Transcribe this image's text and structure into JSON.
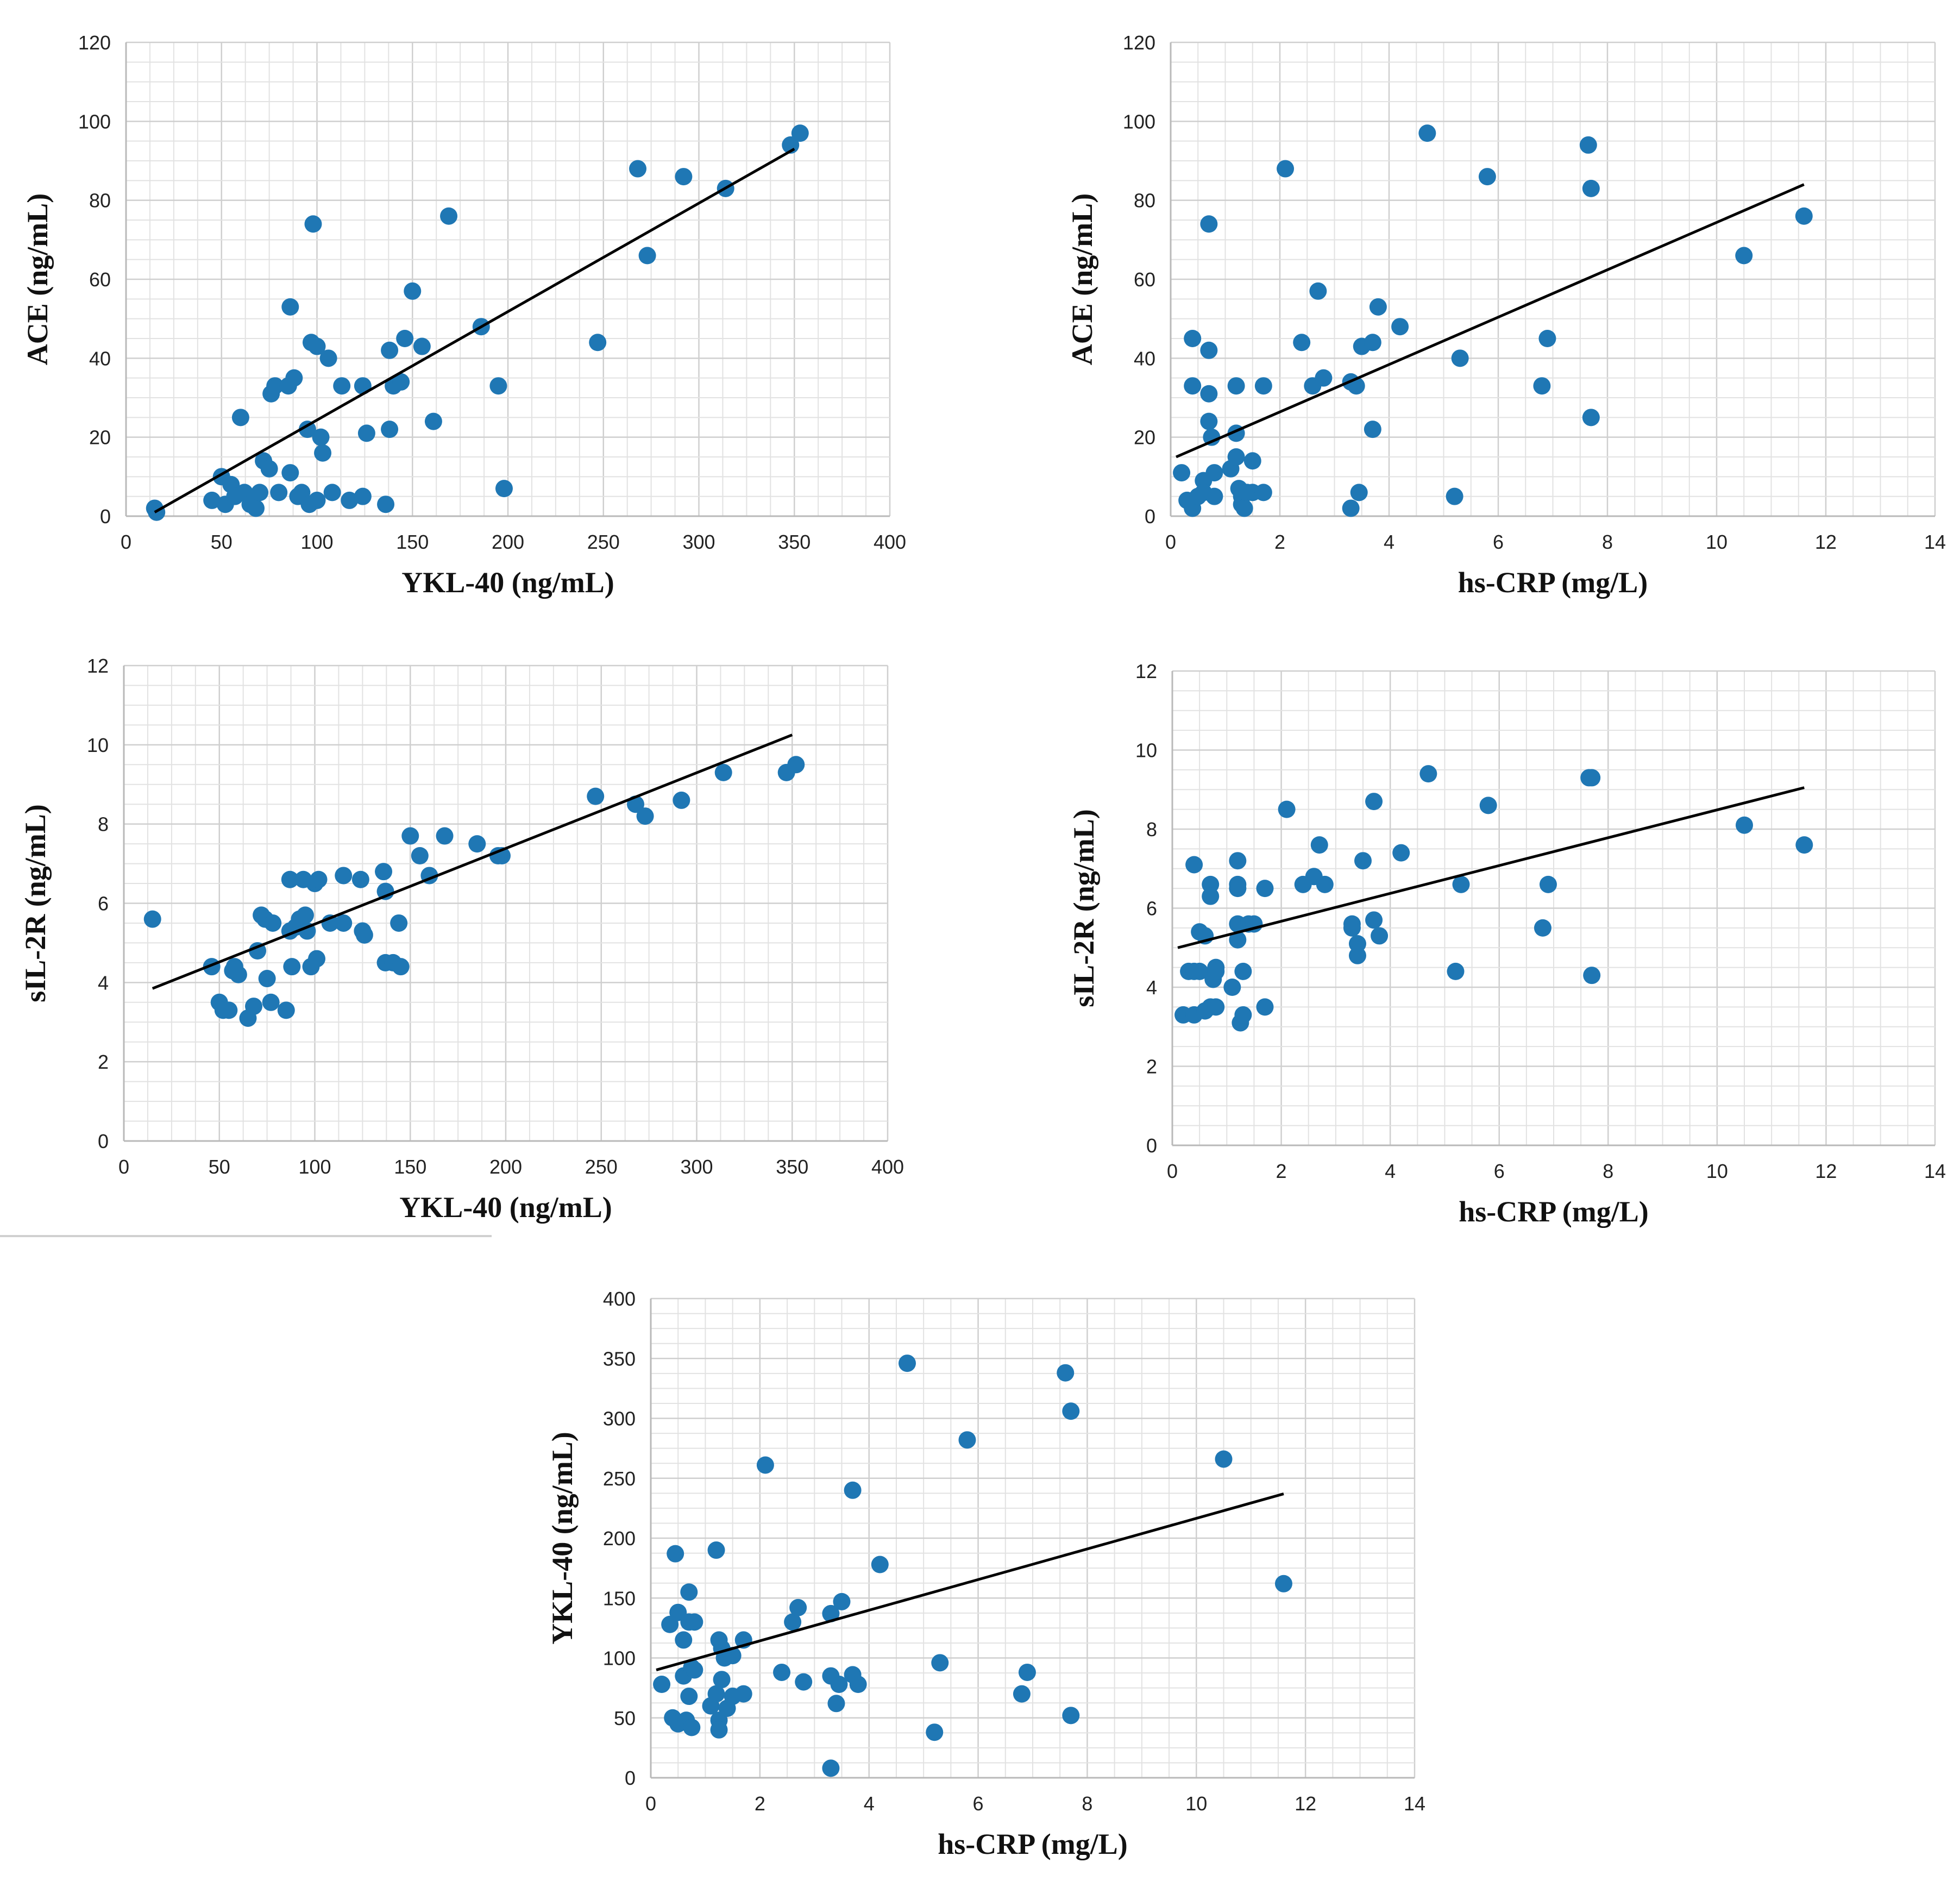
{
  "colors": {
    "point": "#1f77b4",
    "trendline": "#000000"
  },
  "chart_data": [
    {
      "type": "scatter",
      "title": "",
      "xlabel": "YKL-40 (ng/mL)",
      "ylabel": "ACE (ng/mL)",
      "xlim": [
        0,
        400
      ],
      "ylim": [
        0,
        120
      ],
      "xticks": [
        0,
        50,
        100,
        150,
        200,
        250,
        300,
        350,
        400
      ],
      "yticks": [
        0,
        20,
        40,
        60,
        80,
        100,
        120
      ],
      "grid": true,
      "trendline": {
        "x": [
          15,
          350
        ],
        "y": [
          1,
          93
        ]
      },
      "points": [
        [
          15,
          2
        ],
        [
          16,
          1
        ],
        [
          45,
          4
        ],
        [
          50,
          10
        ],
        [
          52,
          3
        ],
        [
          55,
          8
        ],
        [
          57,
          5
        ],
        [
          60,
          25
        ],
        [
          62,
          6
        ],
        [
          65,
          3
        ],
        [
          68,
          2
        ],
        [
          70,
          6
        ],
        [
          72,
          14
        ],
        [
          75,
          12
        ],
        [
          76,
          31
        ],
        [
          78,
          33
        ],
        [
          80,
          6
        ],
        [
          85,
          33
        ],
        [
          86,
          53
        ],
        [
          86,
          11
        ],
        [
          88,
          35
        ],
        [
          90,
          5
        ],
        [
          92,
          6
        ],
        [
          95,
          22
        ],
        [
          96,
          3
        ],
        [
          97,
          44
        ],
        [
          98,
          74
        ],
        [
          100,
          4
        ],
        [
          100,
          43
        ],
        [
          102,
          20
        ],
        [
          103,
          16
        ],
        [
          106,
          40
        ],
        [
          108,
          6
        ],
        [
          113,
          33
        ],
        [
          117,
          4
        ],
        [
          124,
          5
        ],
        [
          124,
          33
        ],
        [
          126,
          21
        ],
        [
          136,
          3
        ],
        [
          138,
          22
        ],
        [
          138,
          42
        ],
        [
          140,
          33
        ],
        [
          144,
          34
        ],
        [
          146,
          45
        ],
        [
          150,
          57
        ],
        [
          155,
          43
        ],
        [
          161,
          24
        ],
        [
          169,
          76
        ],
        [
          186,
          48
        ],
        [
          195,
          33
        ],
        [
          198,
          7
        ],
        [
          247,
          44
        ],
        [
          268,
          88
        ],
        [
          273,
          66
        ],
        [
          292,
          86
        ],
        [
          314,
          83
        ],
        [
          348,
          94
        ],
        [
          353,
          97
        ]
      ]
    },
    {
      "type": "scatter",
      "title": "",
      "xlabel": "hs-CRP (mg/L)",
      "ylabel": "ACE (ng/mL)",
      "xlim": [
        0,
        14
      ],
      "ylim": [
        0,
        120
      ],
      "xticks": [
        0,
        2,
        4,
        6,
        8,
        10,
        12,
        14
      ],
      "yticks": [
        0,
        20,
        40,
        60,
        80,
        100,
        120
      ],
      "grid": true,
      "trendline": {
        "x": [
          0.1,
          11.6
        ],
        "y": [
          15,
          84
        ]
      },
      "points": [
        [
          0.2,
          11
        ],
        [
          0.3,
          4
        ],
        [
          0.4,
          2
        ],
        [
          0.4,
          33
        ],
        [
          0.4,
          45
        ],
        [
          0.5,
          5
        ],
        [
          0.6,
          9
        ],
        [
          0.6,
          6
        ],
        [
          0.7,
          42
        ],
        [
          0.7,
          74
        ],
        [
          0.7,
          24
        ],
        [
          0.7,
          31
        ],
        [
          0.75,
          20
        ],
        [
          0.8,
          11
        ],
        [
          0.8,
          5
        ],
        [
          1.1,
          12
        ],
        [
          1.2,
          33
        ],
        [
          1.2,
          21
        ],
        [
          1.2,
          15
        ],
        [
          1.25,
          7
        ],
        [
          1.3,
          5
        ],
        [
          1.3,
          3
        ],
        [
          1.35,
          2
        ],
        [
          1.4,
          6
        ],
        [
          1.5,
          14
        ],
        [
          1.5,
          6
        ],
        [
          1.7,
          6
        ],
        [
          1.7,
          33
        ],
        [
          2.1,
          88
        ],
        [
          2.4,
          44
        ],
        [
          2.6,
          33
        ],
        [
          2.7,
          57
        ],
        [
          2.8,
          35
        ],
        [
          3.3,
          34
        ],
        [
          3.3,
          2
        ],
        [
          3.4,
          33
        ],
        [
          3.45,
          6
        ],
        [
          3.5,
          43
        ],
        [
          3.7,
          44
        ],
        [
          3.7,
          22
        ],
        [
          3.8,
          53
        ],
        [
          4.2,
          48
        ],
        [
          4.7,
          97
        ],
        [
          5.2,
          5
        ],
        [
          5.3,
          40
        ],
        [
          5.8,
          86
        ],
        [
          6.8,
          33
        ],
        [
          6.9,
          45
        ],
        [
          7.65,
          94
        ],
        [
          7.7,
          83
        ],
        [
          7.7,
          25
        ],
        [
          10.5,
          66
        ],
        [
          11.6,
          76
        ]
      ]
    },
    {
      "type": "scatter",
      "title": "",
      "xlabel": "YKL-40 (ng/mL)",
      "ylabel": "sIL-2R (ng/mL)",
      "xlim": [
        0,
        400
      ],
      "ylim": [
        0,
        12
      ],
      "xticks": [
        0,
        50,
        100,
        150,
        200,
        250,
        300,
        350,
        400
      ],
      "yticks": [
        0,
        2,
        4,
        6,
        8,
        10,
        12
      ],
      "grid": true,
      "trendline": {
        "x": [
          15,
          350
        ],
        "y": [
          3.85,
          10.25
        ]
      },
      "points": [
        [
          15,
          5.6
        ],
        [
          46,
          4.4
        ],
        [
          50,
          3.5
        ],
        [
          52,
          3.3
        ],
        [
          55,
          3.3
        ],
        [
          57,
          4.3
        ],
        [
          58,
          4.4
        ],
        [
          60,
          4.2
        ],
        [
          65,
          3.1
        ],
        [
          68,
          3.4
        ],
        [
          70,
          4.8
        ],
        [
          72,
          5.7
        ],
        [
          74,
          5.6
        ],
        [
          75,
          4.1
        ],
        [
          77,
          3.5
        ],
        [
          78,
          5.5
        ],
        [
          85,
          3.3
        ],
        [
          87,
          6.6
        ],
        [
          87,
          5.3
        ],
        [
          88,
          4.4
        ],
        [
          90,
          5.4
        ],
        [
          92,
          5.6
        ],
        [
          94,
          6.6
        ],
        [
          95,
          5.7
        ],
        [
          96,
          5.3
        ],
        [
          98,
          4.4
        ],
        [
          100,
          6.5
        ],
        [
          101,
          4.6
        ],
        [
          102,
          6.6
        ],
        [
          108,
          5.5
        ],
        [
          115,
          6.7
        ],
        [
          115,
          5.5
        ],
        [
          124,
          6.6
        ],
        [
          125,
          5.3
        ],
        [
          126,
          5.2
        ],
        [
          136,
          6.8
        ],
        [
          137,
          6.3
        ],
        [
          137,
          4.5
        ],
        [
          141,
          4.5
        ],
        [
          144,
          5.5
        ],
        [
          145,
          4.4
        ],
        [
          150,
          7.7
        ],
        [
          155,
          7.2
        ],
        [
          160,
          6.7
        ],
        [
          168,
          7.7
        ],
        [
          185,
          7.5
        ],
        [
          196,
          7.2
        ],
        [
          198,
          7.2
        ],
        [
          247,
          8.7
        ],
        [
          268,
          8.5
        ],
        [
          273,
          8.2
        ],
        [
          292,
          8.6
        ],
        [
          314,
          9.3
        ],
        [
          347,
          9.3
        ],
        [
          352,
          9.5
        ]
      ]
    },
    {
      "type": "scatter",
      "title": "",
      "xlabel": "hs-CRP (mg/L)",
      "ylabel": "sIL-2R (ng/mL)",
      "xlim": [
        0,
        14
      ],
      "ylim": [
        0,
        12
      ],
      "xticks": [
        0,
        2,
        4,
        6,
        8,
        10,
        12,
        14
      ],
      "yticks": [
        0,
        2,
        4,
        6,
        8,
        10,
        12
      ],
      "grid": true,
      "trendline": {
        "x": [
          0.1,
          11.6
        ],
        "y": [
          5.0,
          9.05
        ]
      },
      "points": [
        [
          0.2,
          3.3
        ],
        [
          0.3,
          4.4
        ],
        [
          0.4,
          4.4
        ],
        [
          0.4,
          7.1
        ],
        [
          0.4,
          3.3
        ],
        [
          0.5,
          5.4
        ],
        [
          0.5,
          4.4
        ],
        [
          0.6,
          3.4
        ],
        [
          0.6,
          5.3
        ],
        [
          0.7,
          3.5
        ],
        [
          0.7,
          6.6
        ],
        [
          0.7,
          6.3
        ],
        [
          0.75,
          4.2
        ],
        [
          0.8,
          4.5
        ],
        [
          0.8,
          3.5
        ],
        [
          0.8,
          4.4
        ],
        [
          1.1,
          4.0
        ],
        [
          1.2,
          7.2
        ],
        [
          1.2,
          6.5
        ],
        [
          1.2,
          6.6
        ],
        [
          1.2,
          5.6
        ],
        [
          1.2,
          5.2
        ],
        [
          1.25,
          3.1
        ],
        [
          1.3,
          4.4
        ],
        [
          1.3,
          3.3
        ],
        [
          1.4,
          5.6
        ],
        [
          1.5,
          5.6
        ],
        [
          1.7,
          6.5
        ],
        [
          1.7,
          3.5
        ],
        [
          2.1,
          8.5
        ],
        [
          2.4,
          6.6
        ],
        [
          2.6,
          6.8
        ],
        [
          2.7,
          7.6
        ],
        [
          2.8,
          6.6
        ],
        [
          3.3,
          5.6
        ],
        [
          3.3,
          5.5
        ],
        [
          3.4,
          4.8
        ],
        [
          3.4,
          5.1
        ],
        [
          3.5,
          7.2
        ],
        [
          3.7,
          5.7
        ],
        [
          3.7,
          8.7
        ],
        [
          3.8,
          5.3
        ],
        [
          4.2,
          7.4
        ],
        [
          4.7,
          9.4
        ],
        [
          5.2,
          4.4
        ],
        [
          5.3,
          6.6
        ],
        [
          5.8,
          8.6
        ],
        [
          6.8,
          5.5
        ],
        [
          6.9,
          6.6
        ],
        [
          7.65,
          9.3
        ],
        [
          7.7,
          9.3
        ],
        [
          7.7,
          4.3
        ],
        [
          10.5,
          8.1
        ],
        [
          11.6,
          7.6
        ]
      ]
    },
    {
      "type": "scatter",
      "title": "",
      "xlabel": "hs-CRP (mg/L)",
      "ylabel": "YKL-40 (ng/mL)",
      "xlim": [
        0,
        14
      ],
      "ylim": [
        0,
        400
      ],
      "xticks": [
        0,
        2,
        4,
        6,
        8,
        10,
        12,
        14
      ],
      "yticks": [
        0,
        50,
        100,
        150,
        200,
        250,
        300,
        350,
        400
      ],
      "grid": true,
      "trendline": {
        "x": [
          0.1,
          11.6
        ],
        "y": [
          90,
          237
        ]
      },
      "points": [
        [
          0.2,
          78
        ],
        [
          0.35,
          128
        ],
        [
          0.4,
          50
        ],
        [
          0.45,
          187
        ],
        [
          0.5,
          138
        ],
        [
          0.5,
          45
        ],
        [
          0.6,
          85
        ],
        [
          0.6,
          115
        ],
        [
          0.65,
          48
        ],
        [
          0.7,
          155
        ],
        [
          0.7,
          68
        ],
        [
          0.7,
          130
        ],
        [
          0.75,
          42
        ],
        [
          0.75,
          92
        ],
        [
          0.8,
          130
        ],
        [
          0.8,
          90
        ],
        [
          1.1,
          60
        ],
        [
          1.2,
          70
        ],
        [
          1.2,
          190
        ],
        [
          1.25,
          48
        ],
        [
          1.25,
          115
        ],
        [
          1.25,
          40
        ],
        [
          1.3,
          108
        ],
        [
          1.3,
          82
        ],
        [
          1.35,
          100
        ],
        [
          1.4,
          58
        ],
        [
          1.5,
          68
        ],
        [
          1.5,
          102
        ],
        [
          1.7,
          115
        ],
        [
          1.7,
          70
        ],
        [
          2.1,
          261
        ],
        [
          2.4,
          88
        ],
        [
          2.6,
          130
        ],
        [
          2.7,
          142
        ],
        [
          2.8,
          80
        ],
        [
          3.3,
          137
        ],
        [
          3.3,
          85
        ],
        [
          3.3,
          8
        ],
        [
          3.4,
          62
        ],
        [
          3.45,
          78
        ],
        [
          3.5,
          147
        ],
        [
          3.7,
          240
        ],
        [
          3.7,
          86
        ],
        [
          3.8,
          78
        ],
        [
          4.2,
          178
        ],
        [
          4.7,
          346
        ],
        [
          5.2,
          38
        ],
        [
          5.3,
          96
        ],
        [
          5.8,
          282
        ],
        [
          6.8,
          70
        ],
        [
          6.9,
          88
        ],
        [
          7.6,
          338
        ],
        [
          7.7,
          306
        ],
        [
          7.7,
          52
        ],
        [
          10.5,
          266
        ],
        [
          11.6,
          162
        ]
      ]
    }
  ]
}
